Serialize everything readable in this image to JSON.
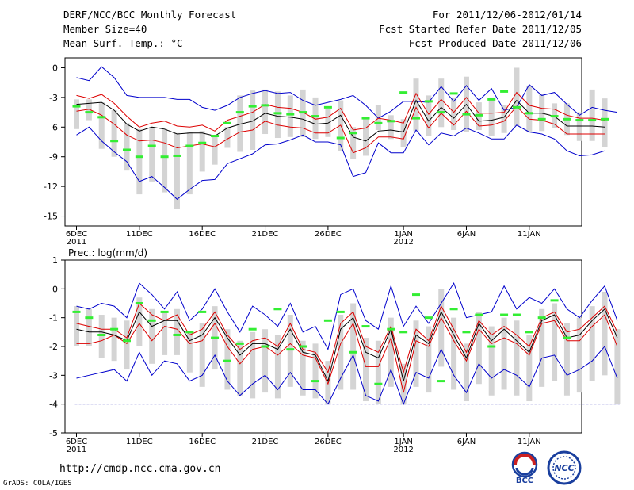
{
  "header": {
    "title": "DERF/NCC/BCC Monthly Forecast",
    "member": "Member Size=40",
    "variable1": "Mean Surf. Temp.: °C",
    "range": "For 2011/12/06-2012/01/14",
    "started": "Fcst Started Refer Date 2011/12/05",
    "produced": "Fcst Produced Date 2011/12/06"
  },
  "footer": {
    "url": "http://cmdp.ncc.cma.gov.cn",
    "credit": "GrADS: COLA/IGES",
    "logo_bcc": "BCC",
    "logo_ncc": "NCC"
  },
  "colors": {
    "median": "#000000",
    "inner": "#dd0000",
    "outer": "#0000cc",
    "mean": "#33ee33",
    "box": "#d4d4d4",
    "baseline": "#0000aa"
  },
  "chart_data": [
    {
      "type": "line",
      "title": "Mean Surf. Temp.: °C",
      "ylim": [
        -16,
        1
      ],
      "yticks": [
        0,
        -3,
        -6,
        -9,
        -12,
        -15
      ],
      "xtick_labels": [
        {
          "day": 1,
          "label": "6DEC",
          "sub": "2011"
        },
        {
          "day": 6,
          "label": "11DEC",
          "sub": ""
        },
        {
          "day": 11,
          "label": "16DEC",
          "sub": ""
        },
        {
          "day": 16,
          "label": "21DEC",
          "sub": ""
        },
        {
          "day": 21,
          "label": "26DEC",
          "sub": ""
        },
        {
          "day": 27,
          "label": "1JAN",
          "sub": "2012"
        },
        {
          "day": 32,
          "label": "6JAN",
          "sub": ""
        },
        {
          "day": 37,
          "label": "11JAN",
          "sub": ""
        }
      ],
      "series": [
        {
          "name": "upper_outer",
          "values": [
            -1.0,
            -1.3,
            0.1,
            -1.0,
            -2.8,
            -3.0,
            -3.0,
            -3.0,
            -3.2,
            -3.2,
            -4.0,
            -4.3,
            -3.8,
            -3.0,
            -2.6,
            -2.3,
            -2.6,
            -2.5,
            -3.3,
            -3.8,
            -3.5,
            -3.2,
            -2.8,
            -3.8,
            -5.1,
            -4.4,
            -3.4,
            -3.4,
            -3.5,
            -1.9,
            -3.4,
            -1.8,
            -3.3,
            -2.1,
            -4.3,
            -4.0,
            -1.7,
            -2.8,
            -2.5,
            -3.7,
            -4.8,
            -4.0,
            -4.3,
            -4.5
          ]
        },
        {
          "name": "upper_inner",
          "values": [
            -2.8,
            -3.1,
            -2.7,
            -3.6,
            -4.9,
            -6.0,
            -5.6,
            -5.4,
            -5.9,
            -6.0,
            -5.8,
            -6.4,
            -5.3,
            -4.9,
            -4.5,
            -3.7,
            -4.0,
            -4.1,
            -4.5,
            -5.2,
            -5.0,
            -4.1,
            -6.3,
            -6.1,
            -5.1,
            -5.3,
            -5.6,
            -2.6,
            -4.7,
            -3.2,
            -4.5,
            -3.0,
            -4.6,
            -4.6,
            -4.5,
            -2.5,
            -3.8,
            -4.1,
            -4.2,
            -4.8,
            -5.1,
            -5.1,
            -5.3
          ]
        },
        {
          "name": "median",
          "values": [
            -3.7,
            -3.6,
            -3.5,
            -4.3,
            -5.7,
            -6.4,
            -6.0,
            -6.2,
            -6.7,
            -6.6,
            -6.6,
            -6.9,
            -6.1,
            -5.7,
            -5.4,
            -4.6,
            -4.9,
            -5.0,
            -5.2,
            -5.7,
            -5.6,
            -4.8,
            -7.0,
            -7.4,
            -6.4,
            -6.3,
            -6.5,
            -3.3,
            -5.4,
            -4.0,
            -5.1,
            -3.7,
            -5.4,
            -5.3,
            -5.0,
            -3.3,
            -4.6,
            -4.6,
            -4.9,
            -5.9,
            -5.9,
            -5.9,
            -6.0
          ]
        },
        {
          "name": "lower_inner",
          "values": [
            -4.4,
            -4.2,
            -4.8,
            -5.7,
            -6.8,
            -7.4,
            -7.3,
            -7.6,
            -8.1,
            -7.9,
            -7.7,
            -8.0,
            -7.2,
            -6.5,
            -6.3,
            -5.4,
            -5.8,
            -6.0,
            -6.1,
            -6.6,
            -6.6,
            -5.8,
            -8.6,
            -8.1,
            -7.0,
            -7.0,
            -7.2,
            -4.0,
            -6.1,
            -4.6,
            -5.8,
            -4.4,
            -5.9,
            -5.8,
            -5.4,
            -3.9,
            -5.2,
            -5.3,
            -5.7,
            -6.7,
            -6.7,
            -6.7,
            -6.7
          ]
        },
        {
          "name": "lower_outer",
          "values": [
            -6.8,
            -6.0,
            -7.4,
            -8.5,
            -9.5,
            -11.5,
            -11.0,
            -12.1,
            -13.3,
            -12.3,
            -11.4,
            -11.3,
            -9.7,
            -9.2,
            -8.7,
            -7.8,
            -7.7,
            -7.3,
            -6.8,
            -7.5,
            -7.5,
            -7.8,
            -11.0,
            -10.6,
            -7.6,
            -8.6,
            -8.6,
            -6.3,
            -7.8,
            -6.6,
            -6.9,
            -6.1,
            -6.6,
            -7.2,
            -7.2,
            -5.8,
            -6.5,
            -6.7,
            -7.2,
            -8.4,
            -8.9,
            -8.8,
            -8.4
          ]
        },
        {
          "name": "mean",
          "values": [
            -3.9,
            -4.5,
            -5.0,
            -7.4,
            -8.3,
            -9.0,
            -7.9,
            -9.0,
            -8.9,
            -7.9,
            -7.6,
            -6.9,
            -5.6,
            -4.5,
            -3.9,
            -3.8,
            -4.6,
            -4.7,
            -4.5,
            -4.9,
            -4.0,
            -7.1,
            -6.6,
            -5.1,
            -5.6,
            -5.4,
            -2.5,
            -5.1,
            -3.4,
            -4.5,
            -2.6,
            -4.7,
            -4.8,
            -3.2,
            -2.4,
            -4.0,
            -4.6,
            -5.2,
            -4.9,
            -5.2,
            -5.3,
            -5.3,
            -5.2
          ]
        },
        {
          "name": "box_top",
          "values": [
            -3.2,
            -3.2,
            -3.5,
            -4.3,
            -5.6,
            -6.2,
            -6.0,
            -6.2,
            -6.6,
            -6.5,
            -6.4,
            -6.8,
            -6.0,
            -2.8,
            -2.3,
            -2.2,
            -2.4,
            -2.8,
            -2.2,
            -3.0,
            -4.2,
            -3.3,
            -6.0,
            -5.0,
            -3.8,
            -4.8,
            -5.2,
            -1.1,
            -2.8,
            -1.1,
            -3.0,
            -0.9,
            -3.5,
            -3.0,
            -3.8,
            0.0,
            -1.8,
            -2.7,
            -3.6,
            -3.6,
            -4.5,
            -2.2,
            -3.1
          ]
        },
        {
          "name": "box_bottom",
          "values": [
            -6.2,
            -5.3,
            -8.2,
            -9.0,
            -10.4,
            -12.8,
            -11.5,
            -12.6,
            -14.3,
            -12.8,
            -10.5,
            -9.8,
            -8.1,
            -8.5,
            -8.3,
            -6.7,
            -7.1,
            -7.0,
            -7.0,
            -7.2,
            -7.0,
            -8.4,
            -9.2,
            -8.9,
            -6.3,
            -7.2,
            -8.0,
            -6.4,
            -6.9,
            -6.0,
            -6.3,
            -6.5,
            -6.3,
            -6.9,
            -6.6,
            -5.9,
            -6.5,
            -6.4,
            -6.1,
            -6.8,
            -7.4,
            -7.4,
            -8.0
          ]
        }
      ]
    },
    {
      "type": "line",
      "title": "Prec.: log(mm/d)",
      "ylim": [
        -5,
        1
      ],
      "yticks": [
        1,
        0,
        -1,
        -2,
        -3,
        -4,
        -5
      ],
      "baseline": -4,
      "xtick_labels": [
        {
          "day": 1,
          "label": "6DEC",
          "sub": "2011"
        },
        {
          "day": 6,
          "label": "11DEC",
          "sub": ""
        },
        {
          "day": 11,
          "label": "16DEC",
          "sub": ""
        },
        {
          "day": 16,
          "label": "21DEC",
          "sub": ""
        },
        {
          "day": 21,
          "label": "26DEC",
          "sub": ""
        },
        {
          "day": 27,
          "label": "1JAN",
          "sub": "2012"
        },
        {
          "day": 32,
          "label": "6JAN",
          "sub": ""
        },
        {
          "day": 37,
          "label": "11JAN",
          "sub": ""
        }
      ],
      "series": [
        {
          "name": "upper_outer",
          "values": [
            -0.6,
            -0.7,
            -0.5,
            -0.6,
            -1.0,
            0.2,
            -0.2,
            -0.7,
            -0.1,
            -1.1,
            -0.7,
            0.0,
            -0.8,
            -1.5,
            -0.6,
            -0.9,
            -1.3,
            -0.5,
            -1.5,
            -1.3,
            -2.1,
            -0.2,
            0.0,
            -1.1,
            -1.4,
            0.1,
            -1.3,
            -0.6,
            -1.2,
            -0.5,
            0.2,
            -1.0,
            -0.9,
            -0.8,
            0.1,
            -0.7,
            -0.3,
            -0.5,
            0.0,
            -0.7,
            -1.0,
            -0.4,
            0.1,
            -1.1
          ]
        },
        {
          "name": "upper_inner",
          "values": [
            -1.2,
            -1.3,
            -1.4,
            -1.4,
            -1.7,
            -0.5,
            -0.9,
            -1.1,
            -0.9,
            -1.6,
            -1.4,
            -0.8,
            -1.6,
            -2.1,
            -1.8,
            -1.7,
            -2.0,
            -1.2,
            -2.1,
            -2.2,
            -2.9,
            -1.2,
            -0.8,
            -2.0,
            -2.2,
            -1.3,
            -2.9,
            -1.4,
            -1.8,
            -0.6,
            -1.4,
            -2.2,
            -1.1,
            -1.6,
            -1.3,
            -1.6,
            -2.0,
            -1.0,
            -0.8,
            -1.5,
            -1.4,
            -1.0,
            -0.6,
            -1.5
          ]
        },
        {
          "name": "median",
          "values": [
            -1.4,
            -1.5,
            -1.5,
            -1.6,
            -1.8,
            -0.8,
            -1.3,
            -1.1,
            -1.1,
            -1.8,
            -1.6,
            -1.0,
            -1.7,
            -2.3,
            -1.9,
            -1.9,
            -2.1,
            -1.4,
            -2.2,
            -2.3,
            -3.2,
            -1.4,
            -1.0,
            -2.2,
            -2.4,
            -1.4,
            -3.2,
            -1.6,
            -1.9,
            -0.8,
            -1.6,
            -2.4,
            -1.2,
            -1.8,
            -1.4,
            -1.8,
            -2.2,
            -1.1,
            -0.9,
            -1.7,
            -1.6,
            -1.1,
            -0.7,
            -1.7
          ]
        },
        {
          "name": "lower_inner",
          "values": [
            -1.9,
            -1.9,
            -1.8,
            -1.6,
            -1.9,
            -1.2,
            -1.8,
            -1.3,
            -1.4,
            -1.9,
            -1.8,
            -1.2,
            -2.0,
            -2.6,
            -2.1,
            -2.0,
            -2.3,
            -1.9,
            -2.3,
            -2.4,
            -3.3,
            -1.9,
            -1.2,
            -2.7,
            -2.7,
            -1.7,
            -3.6,
            -1.8,
            -2.0,
            -1.0,
            -1.8,
            -2.5,
            -1.4,
            -1.9,
            -1.7,
            -1.9,
            -2.3,
            -1.2,
            -1.1,
            -1.8,
            -1.8,
            -1.3,
            -0.9,
            -2.0
          ]
        },
        {
          "name": "lower_outer",
          "values": [
            -3.1,
            -3.0,
            -2.9,
            -2.8,
            -3.2,
            -2.2,
            -3.0,
            -2.5,
            -2.6,
            -3.2,
            -3.0,
            -2.3,
            -3.2,
            -3.7,
            -3.3,
            -3.0,
            -3.5,
            -2.9,
            -3.5,
            -3.5,
            -4.0,
            -3.1,
            -2.3,
            -3.7,
            -3.9,
            -2.8,
            -4.0,
            -2.9,
            -3.1,
            -2.1,
            -3.0,
            -3.6,
            -2.6,
            -3.1,
            -2.8,
            -3.0,
            -3.4,
            -2.4,
            -2.3,
            -3.0,
            -2.8,
            -2.5,
            -2.0,
            -3.1
          ]
        },
        {
          "name": "mean",
          "values": [
            -0.8,
            -1.0,
            -1.6,
            -1.4,
            -1.8,
            -0.5,
            -1.1,
            -0.8,
            -1.6,
            -1.5,
            -0.8,
            -1.7,
            -2.5,
            -1.9,
            -1.4,
            -2.0,
            -0.7,
            -2.1,
            -2.0,
            -3.2,
            -1.1,
            -0.8,
            -2.2,
            -1.3,
            -3.3,
            -1.4,
            -1.5,
            -0.2,
            -1.0,
            -3.2,
            -0.7,
            -1.5,
            -0.9,
            -2.0,
            -0.9,
            -0.9,
            -1.5,
            -1.0,
            -0.4,
            -1.7
          ]
        },
        {
          "name": "box_top",
          "values": [
            -0.6,
            -0.7,
            -0.9,
            -1.0,
            -1.1,
            -0.3,
            -0.7,
            -0.8,
            -0.7,
            -1.5,
            -1.2,
            -0.6,
            -1.4,
            -1.8,
            -1.5,
            -1.4,
            -1.6,
            -0.9,
            -1.8,
            -1.9,
            -2.5,
            -0.9,
            -0.5,
            -1.7,
            -1.8,
            -1.0,
            -2.6,
            -1.1,
            -1.3,
            0.0,
            -1.0,
            -1.9,
            -0.8,
            -1.3,
            -1.0,
            -1.1,
            -1.6,
            -0.7,
            -0.5,
            -1.2,
            -1.0,
            -0.6,
            -0.1,
            -1.4
          ]
        },
        {
          "name": "box_bottom",
          "values": [
            -2.0,
            -2.0,
            -2.4,
            -2.5,
            -2.8,
            -2.0,
            -2.6,
            -2.3,
            -2.3,
            -2.9,
            -3.4,
            -2.8,
            -3.5,
            -3.7,
            -3.8,
            -3.6,
            -3.8,
            -3.4,
            -3.7,
            -3.8,
            -4.0,
            -3.5,
            -3.5,
            -3.9,
            -4.0,
            -3.4,
            -4.0,
            -3.4,
            -3.6,
            -2.7,
            -3.5,
            -3.9,
            -3.3,
            -3.7,
            -3.5,
            -3.7,
            -3.9,
            -3.4,
            -3.2,
            -3.7,
            -3.6,
            -3.2,
            -3.0,
            -4.0
          ]
        }
      ]
    }
  ]
}
